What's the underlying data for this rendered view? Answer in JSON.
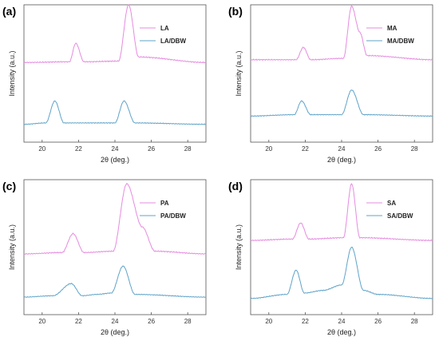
{
  "colors": {
    "series_a": "#e58be0",
    "series_b": "#5fa3c9",
    "frame": "#555555"
  },
  "chart_data": [
    {
      "panel_label": "(a)",
      "type": "line",
      "xlabel": "2θ (deg.)",
      "ylabel": "Intensity (a.u.)",
      "xlim": [
        19,
        29
      ],
      "xticks": [
        20,
        22,
        24,
        26,
        28
      ],
      "legend": "top-right",
      "series": [
        {
          "name": "LA",
          "baseline": 0.58,
          "noise": 0.004,
          "points": [
            [
              19,
              0.58
            ],
            [
              21.5,
              0.585
            ],
            [
              21.85,
              0.72
            ],
            [
              22.3,
              0.585
            ],
            [
              24.2,
              0.59
            ],
            [
              24.75,
              1.0
            ],
            [
              25.3,
              0.62
            ],
            [
              29,
              0.58
            ]
          ]
        },
        {
          "name": "LA/DBW",
          "baseline": 0.13,
          "noise": 0.003,
          "points": [
            [
              19,
              0.13
            ],
            [
              20.2,
              0.14
            ],
            [
              20.7,
              0.3
            ],
            [
              21.2,
              0.14
            ],
            [
              24.0,
              0.14
            ],
            [
              24.5,
              0.3
            ],
            [
              25.1,
              0.14
            ],
            [
              29,
              0.13
            ]
          ]
        }
      ]
    },
    {
      "panel_label": "(b)",
      "type": "line",
      "xlabel": "2θ (deg.)",
      "ylabel": "Intensity (a.u.)",
      "xlim": [
        19,
        29
      ],
      "xticks": [
        20,
        22,
        24,
        26,
        28
      ],
      "legend": "top-right",
      "series": [
        {
          "name": "MA",
          "baseline": 0.6,
          "noise": 0.004,
          "points": [
            [
              19,
              0.6
            ],
            [
              21.5,
              0.6
            ],
            [
              21.9,
              0.69
            ],
            [
              22.3,
              0.6
            ],
            [
              24.1,
              0.61
            ],
            [
              24.55,
              0.99
            ],
            [
              25.0,
              0.8
            ],
            [
              25.4,
              0.63
            ],
            [
              29,
              0.6
            ]
          ]
        },
        {
          "name": "MA/DBW",
          "baseline": 0.19,
          "noise": 0.003,
          "points": [
            [
              19,
              0.19
            ],
            [
              21.4,
              0.2
            ],
            [
              21.8,
              0.3
            ],
            [
              22.3,
              0.2
            ],
            [
              24.0,
              0.2
            ],
            [
              24.55,
              0.38
            ],
            [
              25.2,
              0.2
            ],
            [
              29,
              0.19
            ]
          ]
        }
      ]
    },
    {
      "panel_label": "(c)",
      "type": "line",
      "xlabel": "2θ (deg.)",
      "ylabel": "Intensity (a.u.)",
      "xlim": [
        19,
        29
      ],
      "xticks": [
        20,
        22,
        24,
        26,
        28
      ],
      "legend": "top-right",
      "series": [
        {
          "name": "PA",
          "baseline": 0.45,
          "noise": 0.004,
          "points": [
            [
              19,
              0.45
            ],
            [
              21.1,
              0.46
            ],
            [
              21.7,
              0.6
            ],
            [
              22.3,
              0.46
            ],
            [
              23.9,
              0.47
            ],
            [
              24.65,
              0.97
            ],
            [
              25.5,
              0.65
            ],
            [
              26.2,
              0.47
            ],
            [
              29,
              0.45
            ]
          ]
        },
        {
          "name": "PA/DBW",
          "baseline": 0.13,
          "noise": 0.003,
          "points": [
            [
              19,
              0.13
            ],
            [
              20.6,
              0.14
            ],
            [
              21.6,
              0.23
            ],
            [
              22.2,
              0.14
            ],
            [
              23.0,
              0.15
            ],
            [
              23.8,
              0.16
            ],
            [
              24.45,
              0.36
            ],
            [
              25.1,
              0.15
            ],
            [
              29,
              0.13
            ]
          ]
        }
      ]
    },
    {
      "panel_label": "(d)",
      "type": "line",
      "xlabel": "2θ (deg.)",
      "ylabel": "Intensity (a.u.)",
      "xlim": [
        19,
        29
      ],
      "xticks": [
        20,
        22,
        24,
        26,
        28
      ],
      "legend": "top-right",
      "series": [
        {
          "name": "SA",
          "baseline": 0.55,
          "noise": 0.004,
          "points": [
            [
              19,
              0.55
            ],
            [
              21.3,
              0.56
            ],
            [
              21.75,
              0.68
            ],
            [
              22.2,
              0.56
            ],
            [
              24.1,
              0.57
            ],
            [
              24.55,
              0.97
            ],
            [
              25.0,
              0.57
            ],
            [
              29,
              0.55
            ]
          ]
        },
        {
          "name": "SA/DBW",
          "baseline": 0.12,
          "noise": 0.003,
          "points": [
            [
              19,
              0.12
            ],
            [
              21.0,
              0.15
            ],
            [
              21.5,
              0.33
            ],
            [
              21.95,
              0.16
            ],
            [
              23.0,
              0.18
            ],
            [
              24.0,
              0.22
            ],
            [
              24.55,
              0.5
            ],
            [
              25.2,
              0.18
            ],
            [
              26.0,
              0.15
            ],
            [
              29,
              0.12
            ]
          ]
        }
      ]
    }
  ]
}
